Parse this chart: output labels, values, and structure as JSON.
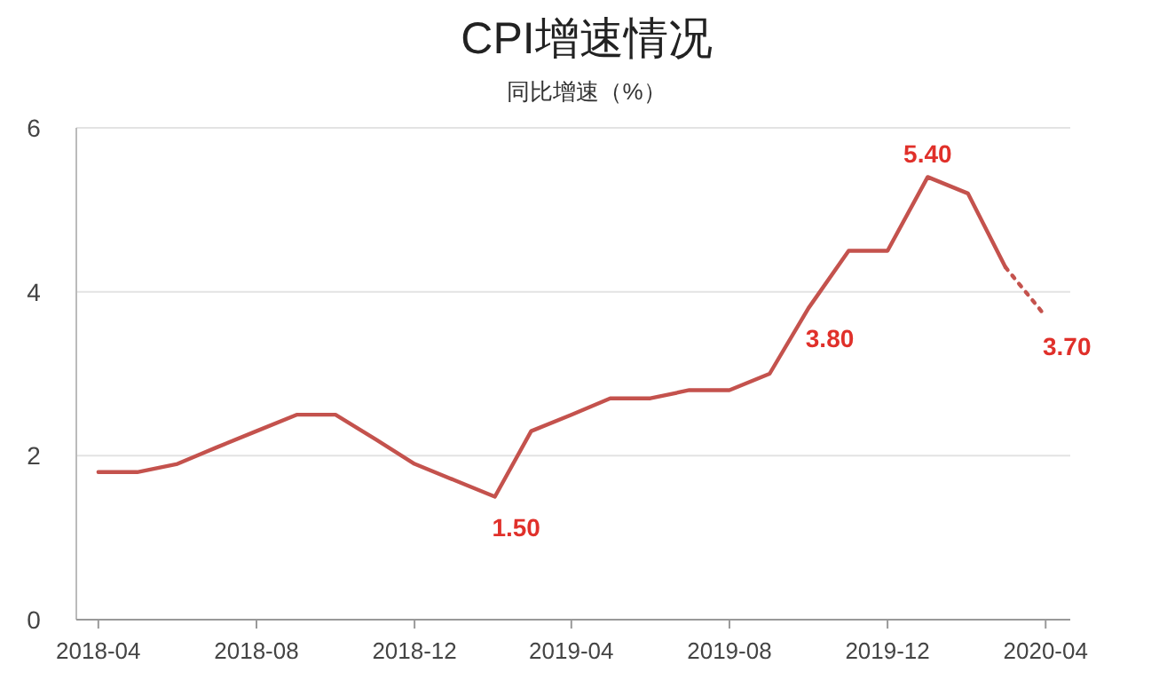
{
  "chart_data": {
    "type": "line",
    "title": "CPI增速情况",
    "subtitle": "同比增速（%）",
    "series": [
      {
        "color": "#c4524d",
        "line_style": "solid",
        "x": [
          "2018-04",
          "2018-05",
          "2018-06",
          "2018-07",
          "2018-08",
          "2018-09",
          "2018-10",
          "2018-11",
          "2018-12",
          "2019-01",
          "2019-02",
          "2019-03",
          "2019-04",
          "2019-05",
          "2019-06",
          "2019-07",
          "2019-08",
          "2019-09",
          "2019-10",
          "2019-11",
          "2019-12",
          "2020-01",
          "2020-02",
          "2020-03"
        ],
        "values": [
          1.8,
          1.8,
          1.9,
          2.1,
          2.3,
          2.5,
          2.5,
          2.2,
          1.9,
          1.7,
          1.5,
          2.3,
          2.5,
          2.7,
          2.7,
          2.8,
          2.8,
          3.0,
          3.8,
          4.5,
          4.5,
          5.4,
          5.2,
          4.3
        ]
      },
      {
        "color": "#c4524d",
        "line_style": "dotted",
        "x": [
          "2020-03",
          "2020-04"
        ],
        "values": [
          4.3,
          3.7
        ]
      }
    ],
    "annotations": [
      {
        "text": "5.40",
        "x": "2020-01",
        "y": 5.4
      },
      {
        "text": "3.80",
        "x": "2019-10",
        "y": 3.8
      },
      {
        "text": "1.50",
        "x": "2019-02",
        "y": 1.5
      },
      {
        "text": "3.70",
        "x": "2020-04",
        "y": 3.7
      }
    ],
    "xlim": [
      "2018-03-15",
      "2020-04-20"
    ],
    "xticks": [
      "2018-04",
      "2018-08",
      "2018-12",
      "2019-04",
      "2019-08",
      "2019-12",
      "2020-04"
    ],
    "ylim": [
      0,
      6
    ],
    "yticks": [
      0,
      2,
      4,
      6
    ],
    "grid": "y",
    "marker": "none"
  }
}
